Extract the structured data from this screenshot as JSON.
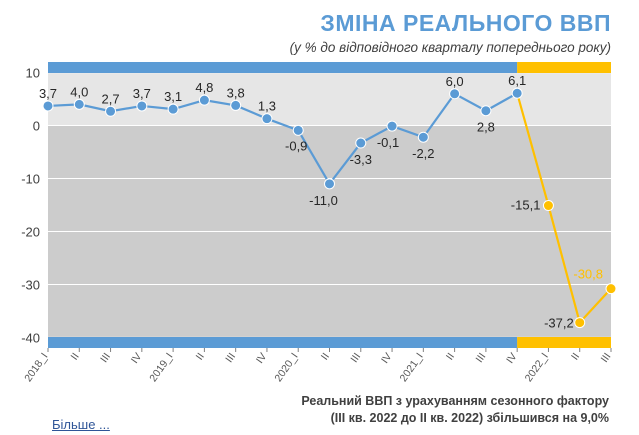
{
  "header": {
    "title": "ЗМІНА РЕАЛЬНОГО ВВП",
    "subtitle": "(у % до відповідного кварталу попереднього року)"
  },
  "footnote": {
    "line1": "Реальний ВВП з урахуванням сезонного фактору",
    "line2": "(ІІІ кв. 2022 до ІІ кв. 2022) збільшився на 9,0%"
  },
  "more_link": "Більше ...",
  "colors": {
    "blue": "#5b9bd5",
    "orange": "#ffc000",
    "bg_upper": "#e6e6e6",
    "bg_lower": "#cccccc"
  },
  "chart_data": {
    "type": "line",
    "ylim": [
      -42,
      12
    ],
    "yticks": [
      10,
      0,
      -10,
      -20,
      -30,
      -40
    ],
    "ytick_labels": [
      "10",
      "0",
      "-10",
      "-20",
      "-30",
      "-40"
    ],
    "grid": true,
    "categories": [
      "2018_I",
      "II",
      "III",
      "IV",
      "2019_I",
      "II",
      "III",
      "IV",
      "2020_I",
      "II",
      "III",
      "IV",
      "2021_I",
      "II",
      "III",
      "IV",
      "2022_I",
      "II",
      "III"
    ],
    "values": [
      3.7,
      4.0,
      2.7,
      3.7,
      3.1,
      4.8,
      3.8,
      1.3,
      -0.9,
      -11.0,
      -3.3,
      -0.1,
      -2.2,
      6.0,
      2.8,
      6.1,
      -15.1,
      -37.2,
      -30.8
    ],
    "data_labels": [
      "3,7",
      "4,0",
      "2,7",
      "3,7",
      "3,1",
      "4,8",
      "3,8",
      "1,3",
      "-0,9",
      "-11,0",
      "-3,3",
      "-0,1",
      "-2,2",
      "6,0",
      "2,8",
      "6,1",
      "-15,1",
      "-37,2",
      "-30,8"
    ],
    "highlight_start_index": 15
  }
}
